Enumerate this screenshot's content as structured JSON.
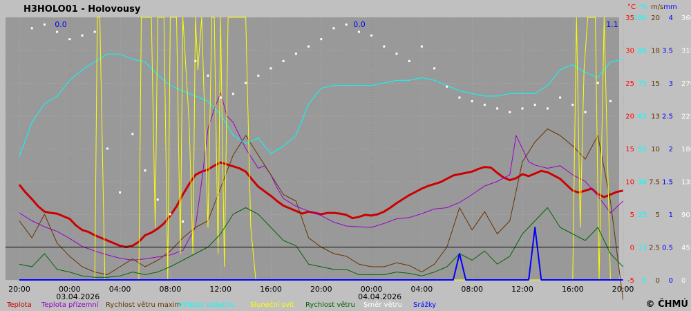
{
  "chart_data": {
    "type": "line",
    "title": "H3HOLO01 - Holovousy",
    "copyright": "© ČHMÚ",
    "x_tick_labels": [
      "20:00",
      "00:00",
      "04:00",
      "08:00",
      "12:00",
      "16:00",
      "20:00",
      "00:00",
      "04:00",
      "08:00",
      "12:00",
      "16:00",
      "20:00"
    ],
    "date_labels": [
      {
        "text": "03.04.2026",
        "at_tick": 1
      },
      {
        "text": "04.04.2026",
        "at_tick": 7
      }
    ],
    "precip_totals": [
      {
        "text": "0.0",
        "day": 1
      },
      {
        "text": "0.0",
        "day": 2
      },
      {
        "text": "1.1",
        "day": 3
      }
    ],
    "axes": [
      {
        "unit": "°C",
        "color": "#ff0000",
        "ticks": [
          "35",
          "30",
          "25",
          "20",
          "15",
          "10",
          "5",
          "0",
          "-5"
        ]
      },
      {
        "unit": "%",
        "color": "#00ffff",
        "ticks": [
          "100",
          "88",
          "75",
          "63",
          "50",
          "38",
          "25",
          "13",
          "0"
        ]
      },
      {
        "unit": "m/s",
        "color": "#663300",
        "ticks": [
          "20",
          "18",
          "15",
          "13",
          "10",
          "7.5",
          "5",
          "2.5",
          "0"
        ]
      },
      {
        "unit": "mm",
        "color": "#0000ff",
        "ticks": [
          "4",
          "3.5",
          "3",
          "2.5",
          "2",
          "1.5",
          "1",
          "0.5",
          "0"
        ]
      },
      {
        "unit": "",
        "color": "#ffffff",
        "ticks": [
          "360",
          "315",
          "270",
          "225",
          "180",
          "135",
          "90",
          "45",
          "0"
        ]
      }
    ],
    "temp_range": [
      -5,
      35
    ],
    "grid": true,
    "legend_position": "bottom",
    "series": [
      {
        "name": "Teplota",
        "color": "#cc0000",
        "unit": "°C",
        "x": [
          0,
          0.5,
          1,
          1.5,
          2,
          2.5,
          3,
          3.5,
          4,
          4.5,
          5,
          5.5,
          6,
          6.5,
          7,
          7.5,
          8,
          8.5,
          9,
          9.5,
          10,
          10.5,
          11,
          11.5,
          12,
          12.5,
          13,
          13.5,
          14,
          14.5,
          15,
          15.5,
          16,
          16.5,
          17,
          17.5,
          18,
          18.5,
          19,
          19.5,
          20,
          20.5,
          21,
          21.5,
          22,
          22.5,
          23,
          23.5,
          24,
          24.5,
          25,
          25.5,
          26,
          26.5,
          27,
          27.5,
          28,
          28.5,
          29,
          29.5,
          30,
          30.5,
          31,
          31.5,
          32,
          32.5,
          33,
          33.5,
          34,
          34.5,
          35,
          35.5,
          36,
          36.5,
          37,
          37.5,
          38,
          38.5,
          39,
          39.5,
          40,
          40.5,
          41,
          41.5,
          42,
          42.5,
          43,
          43.5,
          44,
          44.5,
          45,
          45.5,
          46,
          46.5,
          47,
          47.5,
          48
        ],
        "values": [
          9.5,
          8.3,
          7.3,
          6.2,
          5.4,
          5.2,
          5.1,
          4.7,
          4.3,
          3.3,
          2.6,
          2.3,
          1.8,
          1.4,
          1.0,
          0.6,
          0.2,
          0.0,
          0.2,
          0.8,
          1.8,
          2.2,
          2.8,
          3.6,
          4.8,
          6.2,
          8.0,
          9.6,
          11.0,
          11.5,
          11.8,
          12.4,
          12.9,
          12.6,
          12.3,
          12.0,
          11.5,
          10.3,
          9.2,
          8.5,
          7.8,
          7.0,
          6.3,
          5.9,
          5.5,
          5.1,
          5.4,
          5.2,
          5.0,
          5.2,
          5.2,
          5.1,
          4.9,
          4.4,
          4.6,
          4.9,
          4.8,
          5.0,
          5.4,
          6.0,
          6.7,
          7.3,
          7.9,
          8.4,
          8.9,
          9.3,
          9.6,
          9.9,
          10.4,
          10.9,
          11.1,
          11.3,
          11.5,
          11.9,
          12.2,
          12.1,
          11.3,
          10.6,
          10.2,
          10.5,
          11.1,
          10.8,
          11.2,
          11.6,
          11.4,
          10.9,
          10.4,
          9.5,
          8.6,
          8.3,
          8.6,
          8.9,
          8.1,
          7.6,
          8.0,
          8.4,
          8.6
        ]
      },
      {
        "name": "Teplota přízemní",
        "color": "#9900cc",
        "unit": "°C",
        "x": [
          0,
          1,
          2,
          3,
          4,
          5,
          6,
          7,
          8,
          9,
          10,
          11,
          12,
          13,
          14,
          14.5,
          15,
          15.5,
          16,
          16.5,
          17,
          17.5,
          18,
          18.5,
          19,
          19.5,
          20,
          20.5,
          21,
          22,
          23,
          24,
          25,
          26,
          27,
          28,
          29,
          30,
          31,
          32,
          33,
          34,
          35,
          36,
          37,
          38,
          39,
          39.5,
          40,
          40.5,
          41,
          42,
          43,
          44,
          45,
          46,
          47,
          48
        ],
        "values": [
          5.2,
          4.0,
          3.1,
          2.4,
          1.3,
          0.1,
          -0.6,
          -1.2,
          -1.7,
          -2.0,
          -1.8,
          -1.5,
          -1.2,
          -0.5,
          3.0,
          10.0,
          18.0,
          21.0,
          23.5,
          20.0,
          19.0,
          17.0,
          15.0,
          13.5,
          12.0,
          12.4,
          11.0,
          9.0,
          7.4,
          6.2,
          5.5,
          4.8,
          3.8,
          3.2,
          3.1,
          3.0,
          3.6,
          4.3,
          4.5,
          5.1,
          5.8,
          6.0,
          6.8,
          8.0,
          9.3,
          10.0,
          11.0,
          17.0,
          15.0,
          13.0,
          12.5,
          12.0,
          12.4,
          11.0,
          10.0,
          7.8,
          5.2,
          7.0
        ]
      },
      {
        "name": "Rychlost větru maxim",
        "color": "#663300",
        "unit": "m/s",
        "x": [
          0,
          1,
          2,
          3,
          4,
          5,
          6,
          7,
          8,
          9,
          10,
          11,
          12,
          13,
          14,
          15,
          16,
          17,
          18,
          19,
          20,
          21,
          22,
          23,
          24,
          25,
          26,
          27,
          28,
          29,
          30,
          31,
          32,
          33,
          34,
          35,
          36,
          37,
          38,
          39,
          40,
          41,
          42,
          43,
          44,
          45,
          46,
          47,
          48
        ],
        "values": [
          4.5,
          3.2,
          5.0,
          2.8,
          1.8,
          1.0,
          0.6,
          0.4,
          1.0,
          1.6,
          1.0,
          1.5,
          2.2,
          3.2,
          4.0,
          4.5,
          7.0,
          9.5,
          11.0,
          9.5,
          8.0,
          6.5,
          6.0,
          3.2,
          2.5,
          2.0,
          1.8,
          1.2,
          1.0,
          1.0,
          1.3,
          1.1,
          0.6,
          1.2,
          2.5,
          5.5,
          3.8,
          5.2,
          3.5,
          4.5,
          9.0,
          10.5,
          11.5,
          11.0,
          10.2,
          9.2,
          11.0,
          6.0,
          -1.5
        ]
      },
      {
        "name": "Vlhkost vzduchu",
        "color": "#00ffff",
        "unit": "%",
        "x": [
          0,
          1,
          2,
          3,
          4,
          5,
          6,
          7,
          8,
          9,
          10,
          11,
          12,
          13,
          14,
          15,
          16,
          17,
          18,
          19,
          20,
          21,
          22,
          23,
          24,
          25,
          26,
          27,
          28,
          29,
          30,
          31,
          32,
          33,
          34,
          35,
          36,
          37,
          38,
          39,
          40,
          41,
          42,
          43,
          44,
          45,
          46,
          47,
          48
        ],
        "values": [
          47,
          60,
          67,
          70,
          76,
          80,
          83,
          86,
          86,
          84,
          83,
          78,
          74,
          72,
          70,
          68,
          63,
          55,
          52,
          54,
          48,
          51,
          55,
          67,
          73,
          74,
          74,
          74,
          74,
          75,
          76,
          76,
          77,
          76,
          74,
          72,
          71,
          70,
          70,
          71,
          71,
          71,
          74,
          80,
          82,
          79,
          77,
          83,
          84
        ]
      },
      {
        "name": "Sluneční svit",
        "color": "#ffff00",
        "unit": "%",
        "x": [
          0,
          6,
          6.2,
          6.4,
          6.8,
          7,
          9.5,
          9.7,
          10,
          10.5,
          10.8,
          11,
          11.5,
          11.8,
          12,
          12.5,
          12.8,
          13,
          13.5,
          13.8,
          14,
          14.2,
          14.5,
          15,
          15.3,
          15.5,
          15.8,
          16,
          16.3,
          16.6,
          16.9,
          17.2,
          17.6,
          18,
          18.4,
          18.8,
          19,
          44,
          44.3,
          44.6,
          44.9,
          45.2,
          45.5,
          45.8,
          46.1,
          46.5,
          47,
          48
        ],
        "values": [
          0,
          0,
          100,
          100,
          0,
          0,
          0,
          100,
          100,
          100,
          20,
          100,
          100,
          0,
          100,
          100,
          10,
          100,
          60,
          10,
          100,
          80,
          100,
          20,
          100,
          100,
          10,
          100,
          5,
          100,
          100,
          100,
          100,
          100,
          20,
          0,
          0,
          0,
          100,
          20,
          80,
          100,
          100,
          100,
          0,
          100,
          0,
          0
        ]
      },
      {
        "name": "Rychlost větru",
        "color": "#006600",
        "unit": "m/s",
        "x": [
          0,
          1,
          2,
          3,
          4,
          5,
          6,
          7,
          8,
          9,
          10,
          11,
          12,
          13,
          14,
          15,
          16,
          17,
          18,
          19,
          20,
          21,
          22,
          23,
          24,
          25,
          26,
          27,
          28,
          29,
          30,
          31,
          32,
          33,
          34,
          35,
          36,
          37,
          38,
          39,
          40,
          41,
          42,
          43,
          44,
          45,
          46,
          47,
          48
        ],
        "values": [
          1.2,
          1.0,
          2.0,
          0.8,
          0.6,
          0.3,
          0.2,
          0.2,
          0.3,
          0.6,
          0.4,
          0.6,
          1.0,
          1.5,
          2.0,
          2.5,
          3.5,
          5.0,
          5.5,
          5.0,
          4.0,
          3.0,
          2.6,
          1.2,
          1.0,
          0.8,
          0.8,
          0.4,
          0.4,
          0.4,
          0.6,
          0.5,
          0.3,
          0.6,
          1.0,
          2.0,
          1.5,
          2.2,
          1.2,
          1.8,
          3.5,
          4.5,
          5.5,
          4.0,
          3.5,
          3.0,
          4.0,
          2.0,
          1.0
        ]
      },
      {
        "name": "Směr větru",
        "color": "#ffffff",
        "unit": "°",
        "x": [
          1,
          2,
          3,
          4,
          5,
          6,
          7,
          8,
          9,
          10,
          11,
          12,
          13,
          14,
          15,
          16,
          17,
          18,
          19,
          20,
          21,
          22,
          23,
          24,
          25,
          26,
          27,
          28,
          29,
          30,
          31,
          32,
          33,
          34,
          35,
          36,
          37,
          38,
          39,
          40,
          41,
          42,
          43,
          44,
          45,
          46,
          47
        ],
        "values": [
          345,
          350,
          340,
          330,
          335,
          340,
          180,
          120,
          200,
          150,
          110,
          90,
          80,
          300,
          280,
          250,
          255,
          270,
          280,
          290,
          300,
          310,
          320,
          330,
          345,
          350,
          340,
          335,
          320,
          310,
          300,
          320,
          290,
          265,
          250,
          245,
          240,
          235,
          230,
          235,
          240,
          235,
          250,
          240,
          230,
          270,
          245
        ]
      },
      {
        "name": "Srážky",
        "color": "#0000ff",
        "unit": "mm",
        "x": [
          0,
          34.5,
          35,
          35.5,
          36,
          40.5,
          41,
          41.5,
          42,
          48
        ],
        "values": [
          0,
          0,
          0.4,
          0,
          0,
          0,
          0.8,
          0,
          0,
          0
        ]
      }
    ]
  }
}
